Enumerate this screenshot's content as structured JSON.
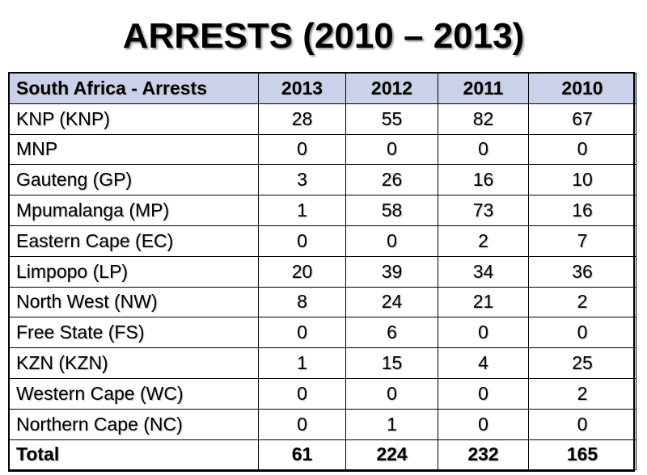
{
  "chart_data": {
    "type": "table",
    "title": "ARRESTS (2010 – 2013)",
    "columns": [
      "South Africa  - Arrests",
      "2013",
      "2012",
      "2011",
      "2010"
    ],
    "rows": [
      {
        "region": "KNP (KNP)",
        "values": [
          "28",
          "55",
          "82",
          "67"
        ]
      },
      {
        "region": "MNP",
        "values": [
          "0",
          "0",
          "0",
          "0"
        ]
      },
      {
        "region": "Gauteng (GP)",
        "values": [
          "3",
          "26",
          "16",
          "10"
        ]
      },
      {
        "region": "Mpumalanga (MP)",
        "values": [
          "1",
          "58",
          "73",
          "16"
        ]
      },
      {
        "region": "Eastern Cape (EC)",
        "values": [
          "0",
          "0",
          "2",
          "7"
        ]
      },
      {
        "region": "Limpopo (LP)",
        "values": [
          "20",
          "39",
          "34",
          "36"
        ]
      },
      {
        "region": "North West (NW)",
        "values": [
          "8",
          "24",
          "21",
          "2"
        ]
      },
      {
        "region": "Free State (FS)",
        "values": [
          "0",
          "6",
          "0",
          "0"
        ]
      },
      {
        "region": "KZN (KZN)",
        "values": [
          "1",
          "15",
          "4",
          "25"
        ]
      },
      {
        "region": "Western Cape (WC)",
        "values": [
          "0",
          "0",
          "0",
          "2"
        ]
      },
      {
        "region": "Northern Cape (NC)",
        "values": [
          "0",
          "1",
          "0",
          "0"
        ]
      }
    ],
    "total": {
      "region": "Total",
      "values": [
        "61",
        "224",
        "232",
        "165"
      ]
    },
    "header_color": "#c9d2e8"
  }
}
